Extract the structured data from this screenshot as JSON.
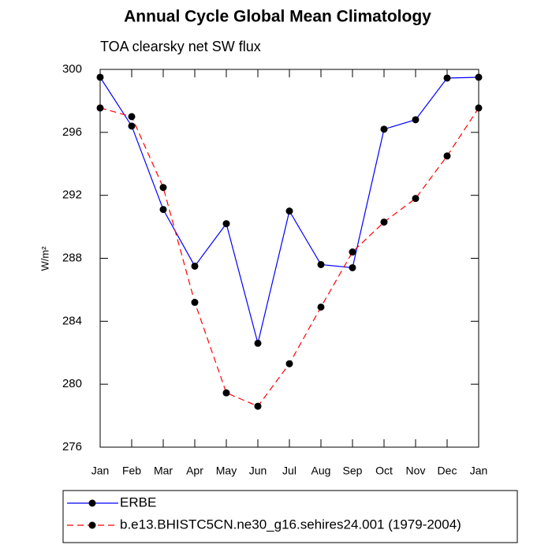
{
  "chart_data": {
    "type": "line",
    "title": "Annual Cycle Global Mean Climatology",
    "subtitle": "TOA clearsky net SW flux",
    "y_label": "W/m²",
    "categories": [
      "Jan",
      "Feb",
      "Mar",
      "Apr",
      "May",
      "Jun",
      "Jul",
      "Aug",
      "Sep",
      "Oct",
      "Nov",
      "Dec",
      "Jan"
    ],
    "series": [
      {
        "name": "ERBE",
        "color": "#0000ff",
        "dash": "solid",
        "values": [
          299.5,
          296.4,
          291.1,
          287.5,
          290.2,
          282.6,
          291.0,
          287.6,
          287.4,
          296.2,
          296.8,
          299.45,
          299.5
        ]
      },
      {
        "name": "b.e13.BHISTC5CN.ne30_g16.sehires24.001 (1979-2004)",
        "color": "#ff0000",
        "dash": "dashed",
        "values": [
          297.55,
          297.0,
          292.5,
          285.2,
          279.45,
          278.6,
          281.3,
          284.9,
          288.4,
          290.3,
          291.8,
          294.5,
          297.55
        ]
      }
    ],
    "ylim": [
      276,
      300
    ],
    "yticks": [
      276,
      280,
      284,
      288,
      292,
      296,
      300
    ],
    "grid": false,
    "legend": "bottom"
  }
}
